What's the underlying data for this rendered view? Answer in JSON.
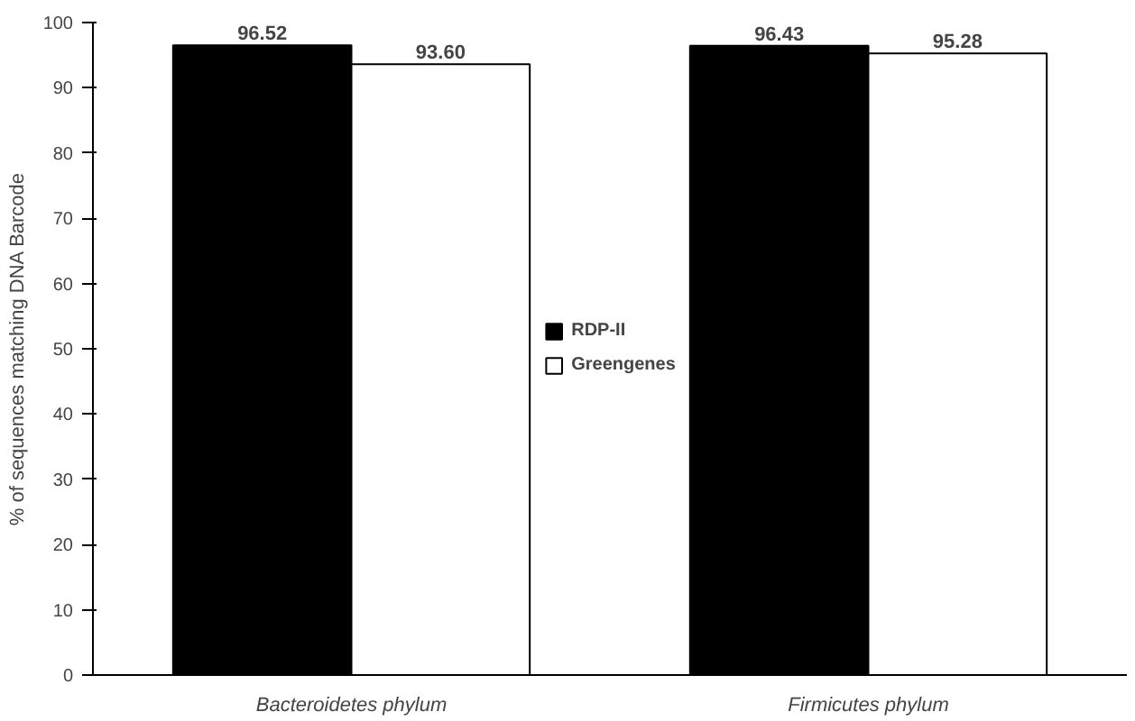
{
  "chart_data": {
    "type": "bar",
    "ylabel": "% of sequences matching DNA Barcode",
    "categories": [
      "Bacteroidetes phylum",
      "Firmicutes phylum"
    ],
    "series": [
      {
        "name": "RDP-II",
        "color": "#000000",
        "values": [
          96.52,
          96.43
        ],
        "value_labels": [
          "96.52",
          "96.43"
        ]
      },
      {
        "name": "Greengenes",
        "color": "#ffffff",
        "values": [
          93.6,
          95.28
        ],
        "value_labels": [
          "93.60",
          "95.28"
        ]
      }
    ],
    "ylim": [
      0,
      100
    ],
    "yticks": [
      0,
      10,
      20,
      30,
      40,
      50,
      60,
      70,
      80,
      90,
      100
    ],
    "grid": false,
    "legend": "center"
  }
}
